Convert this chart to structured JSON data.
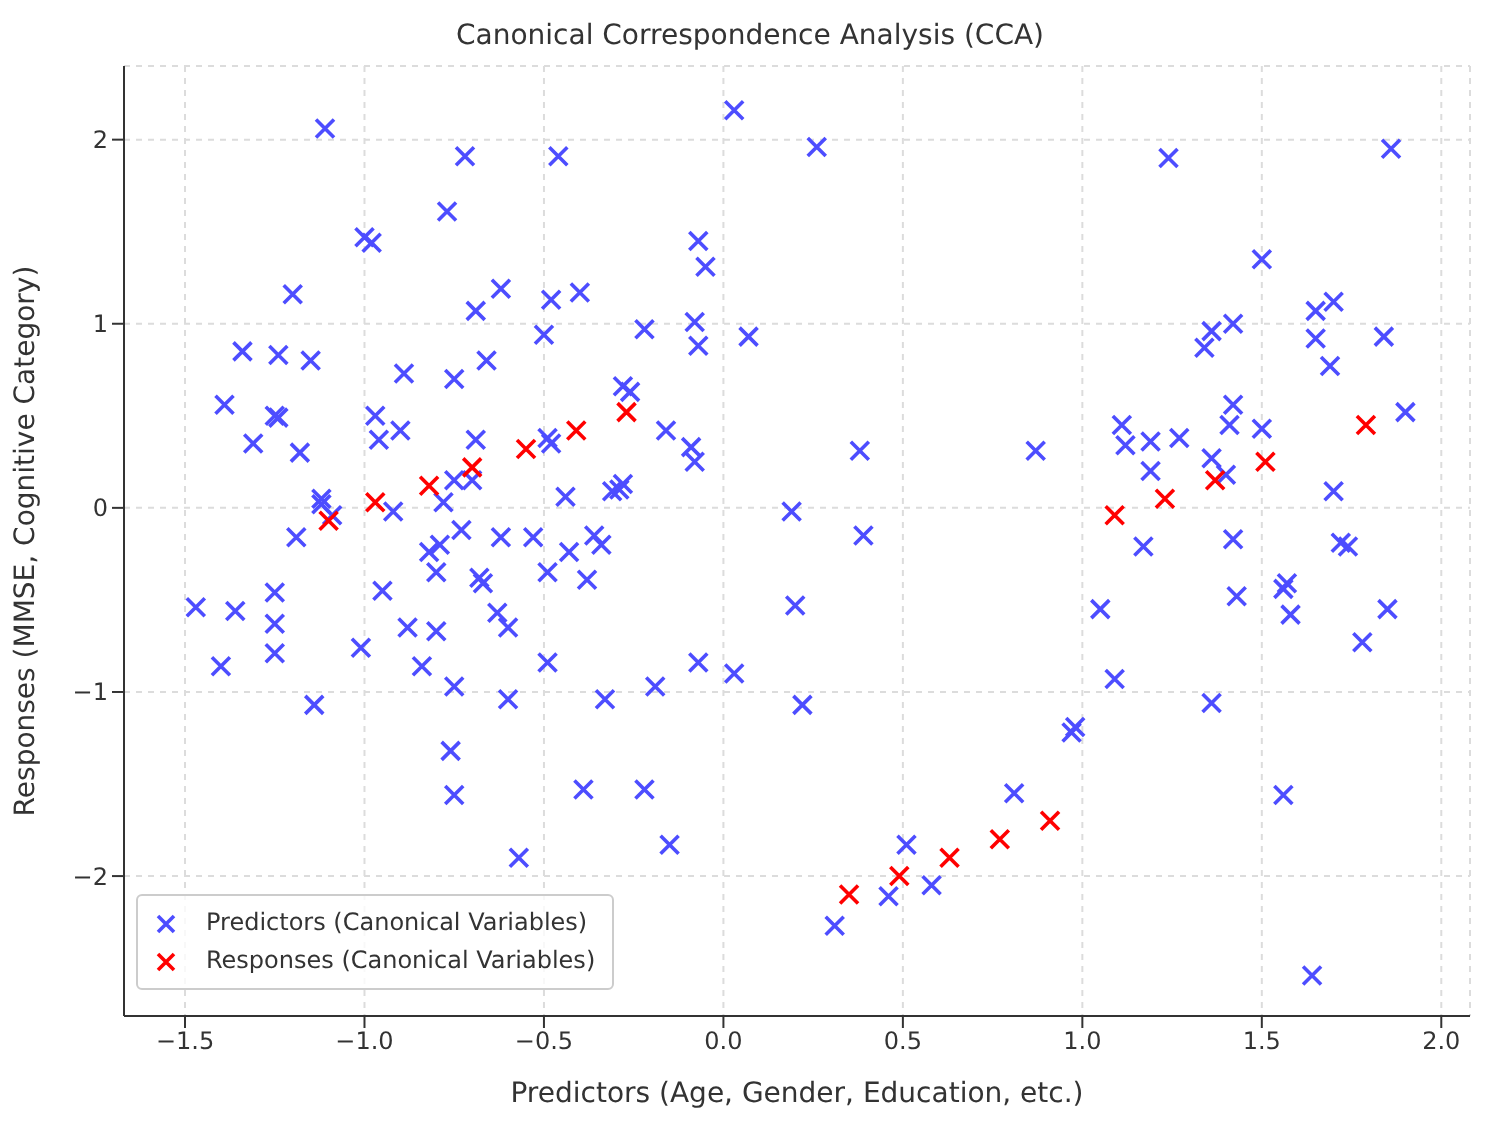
{
  "chart_data": {
    "type": "scatter",
    "title": "Canonical Correspondence Analysis (CCA)",
    "xlabel": "Predictors (Age, Gender, Education, etc.)",
    "ylabel": "Responses (MMSE, Cognitive Category)",
    "xlim": [
      -1.67,
      2.08
    ],
    "ylim": [
      -2.76,
      2.4
    ],
    "xticks": [
      {
        "value": -1.5,
        "label": "−1.5"
      },
      {
        "value": -1,
        "label": "−1.0"
      },
      {
        "value": -0.5,
        "label": "−0.5"
      },
      {
        "value": 0,
        "label": "0.0"
      },
      {
        "value": 0.5,
        "label": "0.5"
      },
      {
        "value": 1,
        "label": "1.0"
      },
      {
        "value": 1.5,
        "label": "1.5"
      },
      {
        "value": 2,
        "label": "2.0"
      }
    ],
    "yticks": [
      {
        "value": -2,
        "label": "−2"
      },
      {
        "value": -1,
        "label": "−1"
      },
      0,
      1,
      2
    ],
    "grid": true,
    "legend": "bottom left",
    "marker": "cross",
    "series": [
      {
        "name": "Predictors (Canonical Variables)",
        "color": "#4d4dff",
        "x": [
          -1.11,
          -1.0,
          -0.77,
          -0.72,
          -0.46,
          0.03,
          0.26,
          1.24,
          1.86,
          -0.07,
          -0.05,
          -0.4,
          -0.62,
          -0.98,
          -0.69,
          -0.66,
          -1.2,
          -1.34,
          -1.24,
          -1.15,
          -0.48,
          -0.08,
          -0.07,
          0.07,
          -0.5,
          -0.75,
          -0.89,
          -0.97,
          -0.9,
          -0.96,
          -1.39,
          -1.31,
          -1.25,
          -1.24,
          -1.18,
          -0.22,
          -0.28,
          -0.26,
          -0.16,
          -0.09,
          -0.08,
          -0.49,
          -0.48,
          -0.69,
          -0.7,
          -0.75,
          -0.73,
          -0.78,
          -0.92,
          -1.12,
          -1.12,
          -1.09,
          -1.19,
          -0.62,
          -0.53,
          -0.44,
          -0.29,
          -0.28,
          -0.31,
          -0.36,
          -0.34,
          -0.43,
          -0.49,
          -0.38,
          -0.68,
          -0.67,
          -0.79,
          -0.82,
          -0.8,
          -0.8,
          -0.88,
          -0.95,
          -1.25,
          -1.36,
          -1.47,
          -1.25,
          -1.25,
          -1.4,
          -1.01,
          -0.84,
          -0.75,
          -0.63,
          -0.6,
          -0.6,
          -0.49,
          -0.33,
          -0.19,
          -0.07,
          0.03,
          0.19,
          0.2,
          0.22,
          0.38,
          0.39,
          -1.14,
          -0.76,
          -0.75,
          -0.39,
          -0.22,
          -0.15,
          -0.57,
          0.31,
          0.46,
          0.51,
          0.58,
          0.81,
          0.87,
          0.97,
          0.98,
          1.05,
          1.09,
          1.11,
          1.12,
          1.17,
          1.19,
          1.19,
          1.27,
          1.34,
          1.36,
          1.36,
          1.36,
          1.4,
          1.41,
          1.42,
          1.42,
          1.42,
          1.43,
          1.5,
          1.5,
          1.56,
          1.56,
          1.57,
          1.58,
          1.64,
          1.65,
          1.65,
          1.69,
          1.7,
          1.7,
          1.72,
          1.74,
          1.78,
          1.84,
          1.85,
          1.9
        ],
        "values": [
          2.06,
          1.47,
          1.61,
          1.91,
          1.91,
          2.16,
          1.96,
          1.9,
          1.95,
          1.45,
          1.31,
          1.17,
          1.19,
          1.44,
          1.07,
          0.8,
          1.16,
          0.85,
          0.83,
          0.8,
          1.13,
          1.01,
          0.88,
          0.93,
          0.94,
          0.7,
          0.73,
          0.5,
          0.42,
          0.37,
          0.56,
          0.35,
          0.5,
          0.49,
          0.3,
          0.97,
          0.66,
          0.63,
          0.42,
          0.33,
          0.25,
          0.38,
          0.35,
          0.37,
          0.15,
          0.15,
          -0.12,
          0.03,
          -0.02,
          0.05,
          0.02,
          -0.04,
          -0.16,
          -0.16,
          -0.16,
          0.06,
          0.1,
          0.13,
          0.09,
          -0.15,
          -0.2,
          -0.24,
          -0.35,
          -0.39,
          -0.38,
          -0.41,
          -0.2,
          -0.24,
          -0.35,
          -0.67,
          -0.65,
          -0.45,
          -0.46,
          -0.56,
          -0.54,
          -0.63,
          -0.79,
          -0.86,
          -0.76,
          -0.86,
          -0.97,
          -0.57,
          -0.65,
          -1.04,
          -0.84,
          -1.04,
          -0.97,
          -0.84,
          -0.9,
          -0.02,
          -0.53,
          -1.07,
          0.31,
          -0.15,
          -1.07,
          -1.32,
          -1.56,
          -1.53,
          -1.53,
          -1.83,
          -1.9,
          -2.27,
          -2.11,
          -1.83,
          -2.05,
          -1.55,
          0.31,
          -1.22,
          -1.19,
          -0.55,
          -0.93,
          0.45,
          0.34,
          -0.21,
          0.2,
          0.36,
          0.38,
          0.87,
          0.96,
          0.27,
          -1.06,
          0.18,
          0.45,
          1.0,
          0.56,
          -0.17,
          -0.48,
          1.35,
          0.43,
          -0.44,
          -1.56,
          -0.41,
          -0.58,
          -2.54,
          1.07,
          0.92,
          0.77,
          1.12,
          0.09,
          -0.19,
          -0.21,
          -0.73,
          0.93,
          -0.55,
          0.52
        ]
      },
      {
        "name": "Responses (Canonical Variables)",
        "color": "#ff0000",
        "x": [
          -1.1,
          -0.97,
          -0.82,
          -0.7,
          -0.55,
          -0.41,
          -0.27,
          0.35,
          0.49,
          0.63,
          0.77,
          0.91,
          1.09,
          1.23,
          1.37,
          1.51,
          1.79
        ],
        "values": [
          -0.07,
          0.03,
          0.12,
          0.22,
          0.32,
          0.42,
          0.52,
          -2.1,
          -2.0,
          -1.9,
          -1.8,
          -1.7,
          -0.04,
          0.05,
          0.15,
          0.25,
          0.45
        ]
      }
    ]
  }
}
